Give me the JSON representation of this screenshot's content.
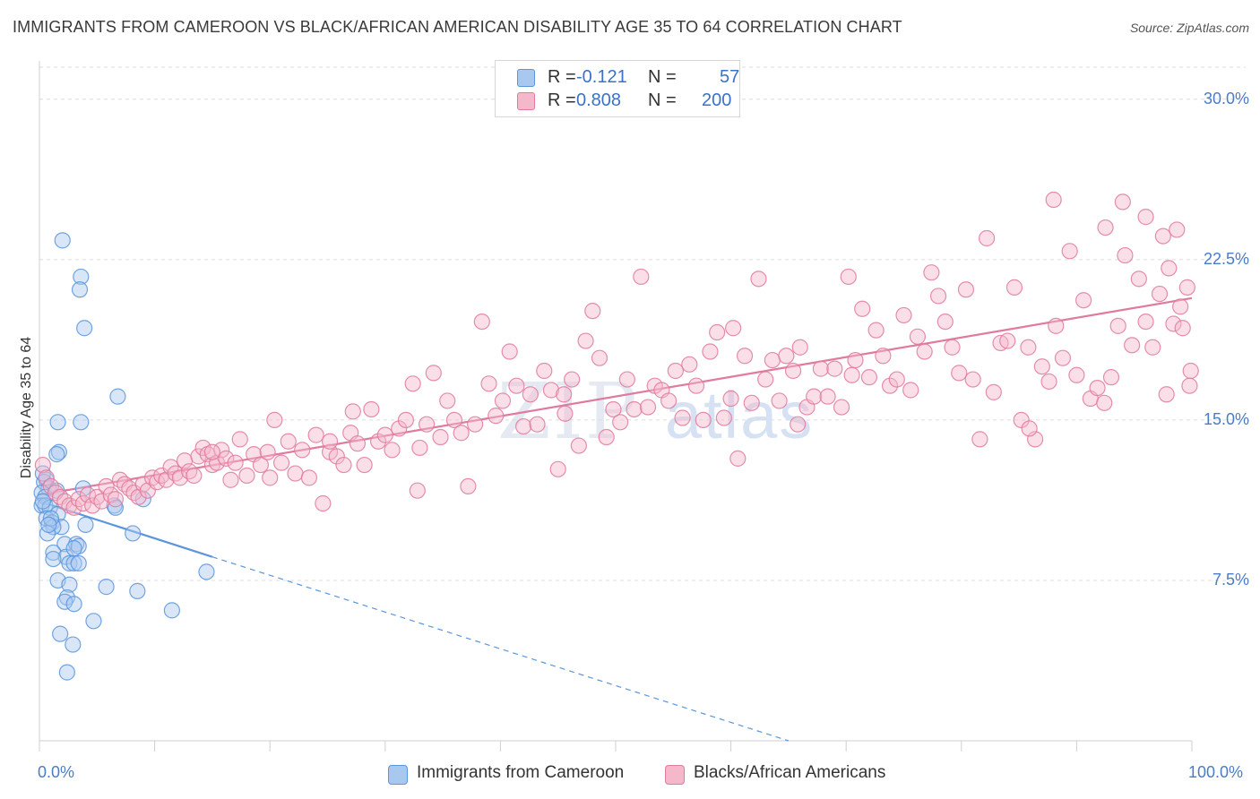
{
  "title": "IMMIGRANTS FROM CAMEROON VS BLACK/AFRICAN AMERICAN DISABILITY AGE 35 TO 64 CORRELATION CHART",
  "source": "Source: ZipAtlas.com",
  "watermark": {
    "a": "ZIP",
    "b": "atlas"
  },
  "legend_top": [
    {
      "swatch_color": "#a9c8f0",
      "r_label": "R =",
      "r_value": "-0.121",
      "n_label": "N =",
      "n_value": "57"
    },
    {
      "swatch_color": "#f5b8cb",
      "r_label": "R =",
      "r_value": "0.808",
      "n_label": "N =",
      "n_value": "200"
    }
  ],
  "legend_bottom": [
    {
      "label": "Immigrants from Cameroon",
      "swatch_color": "#a9c8f0"
    },
    {
      "label": "Blacks/African Americans",
      "swatch_color": "#f5b8cb"
    }
  ],
  "chart_data": {
    "type": "scatter",
    "title": "IMMIGRANTS FROM CAMEROON VS BLACK/AFRICAN AMERICAN DISABILITY AGE 35 TO 64 CORRELATION CHART",
    "xlabel": "",
    "ylabel": "Disability Age 35 to 64",
    "xlim": [
      0,
      100
    ],
    "ylim": [
      0,
      31.5
    ],
    "x_tick_labels": [
      "0.0%",
      "100.0%"
    ],
    "y_ticks": [
      7.5,
      15.0,
      22.5,
      30.0
    ],
    "y_tick_labels": [
      "7.5%",
      "15.0%",
      "22.5%",
      "30.0%"
    ],
    "grid": "horizontal dashed",
    "legend_placement": "top-center and bottom",
    "series": [
      {
        "name": "Immigrants from Cameroon",
        "color": "#5b95dc",
        "fill": "#a9c8f0",
        "trend": {
          "x": [
            0,
            15
          ],
          "y": [
            11.2,
            8.6
          ],
          "extend_dashed_to": [
            65,
            0
          ]
        },
        "points": [
          [
            2.0,
            23.4
          ],
          [
            3.6,
            21.7
          ],
          [
            3.5,
            21.1
          ],
          [
            3.9,
            19.3
          ],
          [
            6.8,
            16.1
          ],
          [
            1.6,
            14.9
          ],
          [
            3.6,
            14.9
          ],
          [
            1.7,
            13.5
          ],
          [
            1.5,
            13.4
          ],
          [
            0.6,
            12.2
          ],
          [
            0.4,
            12.1
          ],
          [
            0.8,
            11.8
          ],
          [
            1.5,
            11.7
          ],
          [
            3.8,
            11.8
          ],
          [
            0.2,
            11.6
          ],
          [
            0.5,
            11.4
          ],
          [
            0.2,
            11.0
          ],
          [
            0.5,
            11.0
          ],
          [
            0.9,
            10.9
          ],
          [
            1.6,
            10.6
          ],
          [
            0.6,
            10.4
          ],
          [
            1.1,
            10.2
          ],
          [
            1.9,
            10.0
          ],
          [
            4.0,
            10.1
          ],
          [
            1.2,
            10.0
          ],
          [
            0.7,
            9.7
          ],
          [
            8.1,
            9.7
          ],
          [
            2.2,
            9.2
          ],
          [
            3.2,
            9.2
          ],
          [
            3.4,
            9.1
          ],
          [
            1.2,
            8.8
          ],
          [
            2.3,
            8.6
          ],
          [
            1.2,
            8.5
          ],
          [
            2.6,
            8.3
          ],
          [
            3.0,
            8.3
          ],
          [
            3.4,
            8.3
          ],
          [
            1.6,
            7.5
          ],
          [
            2.6,
            7.3
          ],
          [
            5.8,
            7.2
          ],
          [
            8.5,
            7.0
          ],
          [
            2.4,
            6.7
          ],
          [
            2.2,
            6.5
          ],
          [
            3.0,
            6.4
          ],
          [
            11.5,
            6.1
          ],
          [
            4.7,
            5.6
          ],
          [
            1.8,
            5.0
          ],
          [
            2.9,
            4.5
          ],
          [
            2.4,
            3.2
          ],
          [
            14.5,
            7.9
          ],
          [
            9.0,
            11.3
          ],
          [
            6.5,
            11.0
          ],
          [
            6.6,
            10.9
          ],
          [
            0.3,
            11.2
          ],
          [
            1.0,
            10.4
          ],
          [
            0.3,
            12.5
          ],
          [
            0.8,
            10.1
          ],
          [
            3.0,
            9.0
          ]
        ]
      },
      {
        "name": "Blacks/African Americans",
        "color": "#e07a9e",
        "fill": "#f5b8cb",
        "trend": {
          "x": [
            0,
            100
          ],
          "y": [
            11.5,
            20.7
          ]
        },
        "points": [
          [
            0.3,
            12.9
          ],
          [
            0.6,
            12.3
          ],
          [
            1.0,
            11.9
          ],
          [
            1.4,
            11.6
          ],
          [
            1.8,
            11.4
          ],
          [
            2.2,
            11.2
          ],
          [
            2.6,
            11.0
          ],
          [
            3.0,
            10.9
          ],
          [
            3.4,
            11.3
          ],
          [
            3.8,
            11.1
          ],
          [
            4.2,
            11.5
          ],
          [
            4.6,
            11.0
          ],
          [
            5.0,
            11.4
          ],
          [
            5.4,
            11.2
          ],
          [
            5.8,
            11.9
          ],
          [
            6.2,
            11.5
          ],
          [
            6.6,
            11.3
          ],
          [
            7.0,
            12.2
          ],
          [
            7.4,
            12.0
          ],
          [
            7.8,
            11.8
          ],
          [
            8.2,
            11.6
          ],
          [
            8.6,
            11.4
          ],
          [
            9.0,
            12.0
          ],
          [
            9.4,
            11.7
          ],
          [
            9.8,
            12.3
          ],
          [
            10.2,
            12.1
          ],
          [
            10.6,
            12.4
          ],
          [
            11.0,
            12.2
          ],
          [
            11.4,
            12.8
          ],
          [
            11.8,
            12.5
          ],
          [
            12.2,
            12.3
          ],
          [
            12.6,
            13.1
          ],
          [
            13.0,
            12.6
          ],
          [
            13.4,
            12.4
          ],
          [
            13.8,
            13.3
          ],
          [
            14.2,
            13.7
          ],
          [
            14.6,
            13.4
          ],
          [
            15.0,
            12.9
          ],
          [
            15.4,
            13.0
          ],
          [
            15.8,
            13.6
          ],
          [
            16.2,
            13.2
          ],
          [
            16.6,
            12.2
          ],
          [
            17.0,
            13.0
          ],
          [
            17.4,
            14.1
          ],
          [
            18.0,
            12.4
          ],
          [
            18.6,
            13.4
          ],
          [
            19.2,
            12.9
          ],
          [
            19.8,
            13.5
          ],
          [
            20.4,
            15.0
          ],
          [
            21.0,
            13.0
          ],
          [
            21.6,
            14.0
          ],
          [
            22.2,
            12.5
          ],
          [
            22.8,
            13.6
          ],
          [
            23.4,
            12.3
          ],
          [
            24.0,
            14.3
          ],
          [
            24.6,
            11.1
          ],
          [
            25.2,
            13.5
          ],
          [
            25.8,
            13.3
          ],
          [
            26.4,
            12.9
          ],
          [
            27.0,
            14.4
          ],
          [
            27.6,
            13.9
          ],
          [
            28.2,
            12.9
          ],
          [
            28.8,
            15.5
          ],
          [
            29.4,
            14.0
          ],
          [
            30.0,
            14.3
          ],
          [
            30.6,
            13.6
          ],
          [
            31.2,
            14.6
          ],
          [
            31.8,
            15.0
          ],
          [
            32.4,
            16.7
          ],
          [
            33.0,
            13.7
          ],
          [
            33.6,
            14.8
          ],
          [
            34.2,
            17.2
          ],
          [
            34.8,
            14.2
          ],
          [
            35.4,
            15.9
          ],
          [
            36.0,
            15.0
          ],
          [
            36.6,
            14.4
          ],
          [
            37.2,
            11.9
          ],
          [
            37.8,
            14.8
          ],
          [
            38.4,
            19.6
          ],
          [
            39.0,
            16.7
          ],
          [
            39.6,
            15.2
          ],
          [
            40.2,
            15.9
          ],
          [
            40.8,
            18.2
          ],
          [
            41.4,
            16.6
          ],
          [
            42.0,
            14.7
          ],
          [
            42.6,
            16.2
          ],
          [
            43.2,
            14.8
          ],
          [
            43.8,
            17.3
          ],
          [
            44.4,
            16.4
          ],
          [
            45.0,
            12.7
          ],
          [
            45.6,
            15.3
          ],
          [
            46.2,
            16.9
          ],
          [
            46.8,
            13.8
          ],
          [
            47.4,
            18.7
          ],
          [
            48.0,
            20.1
          ],
          [
            48.6,
            17.9
          ],
          [
            49.2,
            14.2
          ],
          [
            49.8,
            15.5
          ],
          [
            50.4,
            14.9
          ],
          [
            51.0,
            16.9
          ],
          [
            51.6,
            15.5
          ],
          [
            52.2,
            21.7
          ],
          [
            52.8,
            15.6
          ],
          [
            53.4,
            16.6
          ],
          [
            54.0,
            16.4
          ],
          [
            54.6,
            15.9
          ],
          [
            55.2,
            17.3
          ],
          [
            55.8,
            15.1
          ],
          [
            56.4,
            17.6
          ],
          [
            57.0,
            16.6
          ],
          [
            57.6,
            15.0
          ],
          [
            58.2,
            18.2
          ],
          [
            58.8,
            19.1
          ],
          [
            59.4,
            15.1
          ],
          [
            60.0,
            16.0
          ],
          [
            60.6,
            13.2
          ],
          [
            61.2,
            18.0
          ],
          [
            61.8,
            15.8
          ],
          [
            62.4,
            21.6
          ],
          [
            63.0,
            16.9
          ],
          [
            63.6,
            17.8
          ],
          [
            64.2,
            15.9
          ],
          [
            64.8,
            18.0
          ],
          [
            65.4,
            17.3
          ],
          [
            66.0,
            18.4
          ],
          [
            66.6,
            15.6
          ],
          [
            67.2,
            16.1
          ],
          [
            67.8,
            17.4
          ],
          [
            68.4,
            16.1
          ],
          [
            69.0,
            17.4
          ],
          [
            69.6,
            15.6
          ],
          [
            70.2,
            21.7
          ],
          [
            70.8,
            17.8
          ],
          [
            71.4,
            20.2
          ],
          [
            72.0,
            17.0
          ],
          [
            72.6,
            19.2
          ],
          [
            73.2,
            18.0
          ],
          [
            73.8,
            16.6
          ],
          [
            74.4,
            16.9
          ],
          [
            75.0,
            19.9
          ],
          [
            75.6,
            16.4
          ],
          [
            76.2,
            18.9
          ],
          [
            76.8,
            18.2
          ],
          [
            77.4,
            21.9
          ],
          [
            78.0,
            20.8
          ],
          [
            78.6,
            19.6
          ],
          [
            79.2,
            18.4
          ],
          [
            79.8,
            17.2
          ],
          [
            80.4,
            21.1
          ],
          [
            81.0,
            16.9
          ],
          [
            81.6,
            14.1
          ],
          [
            82.2,
            23.5
          ],
          [
            82.8,
            16.3
          ],
          [
            83.4,
            18.6
          ],
          [
            84.0,
            18.7
          ],
          [
            84.6,
            21.2
          ],
          [
            85.2,
            15.0
          ],
          [
            85.8,
            18.4
          ],
          [
            86.4,
            14.1
          ],
          [
            87.0,
            17.5
          ],
          [
            87.6,
            16.8
          ],
          [
            88.2,
            19.4
          ],
          [
            88.8,
            17.9
          ],
          [
            89.4,
            22.9
          ],
          [
            90.0,
            17.1
          ],
          [
            90.6,
            20.6
          ],
          [
            91.2,
            16.0
          ],
          [
            91.8,
            16.5
          ],
          [
            92.4,
            15.8
          ],
          [
            93.0,
            17.0
          ],
          [
            93.6,
            19.4
          ],
          [
            94.2,
            22.7
          ],
          [
            94.8,
            18.5
          ],
          [
            95.4,
            21.6
          ],
          [
            96.0,
            19.6
          ],
          [
            96.6,
            18.4
          ],
          [
            97.2,
            20.9
          ],
          [
            97.8,
            16.2
          ],
          [
            98.4,
            19.5
          ],
          [
            99.0,
            20.3
          ],
          [
            99.6,
            21.2
          ],
          [
            25.2,
            14.0
          ],
          [
            27.2,
            15.4
          ],
          [
            60.2,
            19.3
          ],
          [
            70.5,
            17.1
          ],
          [
            88.0,
            25.3
          ],
          [
            92.5,
            24.0
          ],
          [
            94.0,
            25.2
          ],
          [
            96.0,
            24.5
          ],
          [
            97.5,
            23.6
          ],
          [
            98.0,
            22.1
          ],
          [
            99.2,
            19.3
          ],
          [
            15.0,
            13.5
          ],
          [
            32.8,
            11.7
          ],
          [
            85.9,
            14.6
          ],
          [
            99.8,
            16.6
          ],
          [
            99.9,
            17.3
          ],
          [
            98.7,
            23.9
          ],
          [
            20.0,
            12.3
          ],
          [
            45.5,
            16.2
          ],
          [
            65.8,
            14.8
          ]
        ]
      }
    ]
  }
}
